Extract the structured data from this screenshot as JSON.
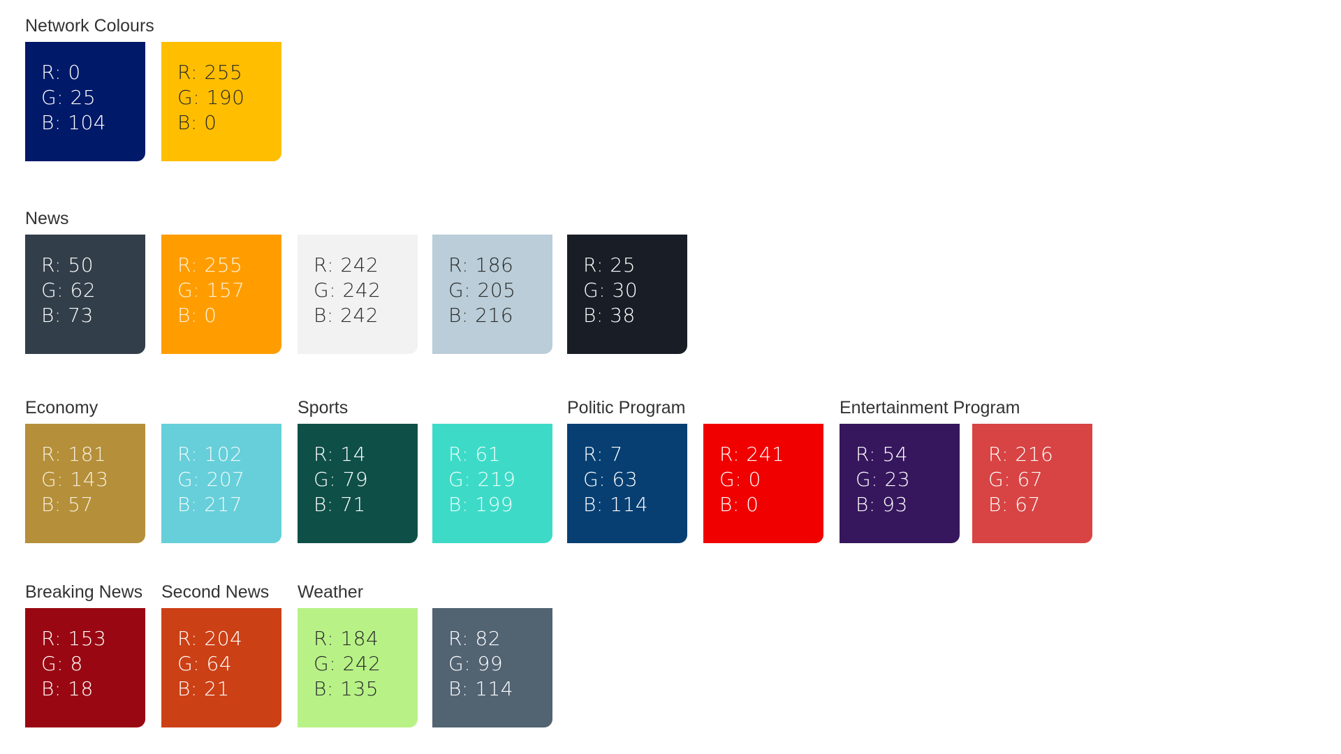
{
  "groups": [
    {
      "label": "Network Colours",
      "swatches": [
        {
          "lines": [
            "R: 0",
            "G: 25",
            "B: 104"
          ],
          "color": "#001968",
          "text_color": "#ffffff"
        },
        {
          "lines": [
            "R: 255",
            "G: 190",
            "B: 0"
          ],
          "color": "#ffbe00",
          "text_color": "#2a2a2a"
        }
      ]
    },
    {
      "label": "News",
      "swatches": [
        {
          "lines": [
            "R: 50",
            "G: 62",
            "B: 73"
          ],
          "color": "#323e49",
          "text_color": "#ffffff"
        },
        {
          "lines": [
            "R: 255",
            "G: 157",
            "B: 0"
          ],
          "color": "#ff9d00",
          "text_color": "#fff3e0"
        },
        {
          "lines": [
            "R: 242",
            "G: 242",
            "B: 242"
          ],
          "color": "#f2f2f2",
          "text_color": "#2a2a2a"
        },
        {
          "lines": [
            "R: 186",
            "G: 205",
            "B: 216"
          ],
          "color": "#bacdd8",
          "text_color": "#2a2a2a"
        },
        {
          "lines": [
            "R: 25",
            "G: 30",
            "B: 38"
          ],
          "color": "#191e26",
          "text_color": "#ffffff"
        }
      ]
    },
    {
      "label": "Economy",
      "swatches": [
        {
          "lines": [
            "R: 181",
            "G: 143",
            "B: 57"
          ],
          "color": "#b58f39",
          "text_color": "#f5f0e0"
        },
        {
          "lines": [
            "R: 102",
            "G: 207",
            "B: 217"
          ],
          "color": "#66cfd9",
          "text_color": "#f0fbfc"
        }
      ]
    },
    {
      "label": "Sports",
      "swatches": [
        {
          "lines": [
            "R: 14",
            "G: 79",
            "B: 71"
          ],
          "color": "#0e4f47",
          "text_color": "#ffffff"
        },
        {
          "lines": [
            "R: 61",
            "G: 219",
            "B: 199"
          ],
          "color": "#3ddbc7",
          "text_color": "#f0fffc"
        }
      ]
    },
    {
      "label": "Politic Program",
      "swatches": [
        {
          "lines": [
            "R: 7",
            "G: 63",
            "B: 114"
          ],
          "color": "#073f72",
          "text_color": "#ffffff"
        },
        {
          "lines": [
            "R: 241",
            "G: 0",
            "B: 0"
          ],
          "color": "#f10000",
          "text_color": "#ffffff"
        }
      ]
    },
    {
      "label": "Entertainment Program",
      "swatches": [
        {
          "lines": [
            "R: 54",
            "G: 23",
            "B: 93"
          ],
          "color": "#36175d",
          "text_color": "#ffffff"
        },
        {
          "lines": [
            "R: 216",
            "G: 67",
            "B: 67"
          ],
          "color": "#d84343",
          "text_color": "#ffffff"
        }
      ]
    },
    {
      "label": "Breaking News",
      "swatches": [
        {
          "lines": [
            "R: 153",
            "G: 8",
            "B: 18"
          ],
          "color": "#990812",
          "text_color": "#ffffff"
        }
      ]
    },
    {
      "label": "Second News",
      "swatches": [
        {
          "lines": [
            "R: 204",
            "G: 64",
            "B: 21"
          ],
          "color": "#cc4015",
          "text_color": "#ffffff"
        }
      ]
    },
    {
      "label": "Weather",
      "swatches": [
        {
          "lines": [
            "R: 184",
            "G: 242",
            "B: 135"
          ],
          "color": "#b8f287",
          "text_color": "#2a2a2a"
        },
        {
          "lines": [
            "R: 82",
            "G: 99",
            "B: 114"
          ],
          "color": "#526372",
          "text_color": "#ffffff"
        }
      ]
    }
  ]
}
